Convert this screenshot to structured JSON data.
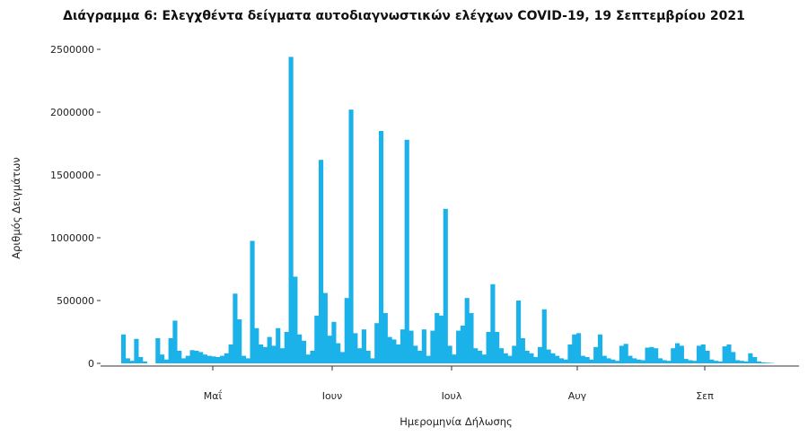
{
  "chart_data": {
    "type": "bar",
    "title": "Διάγραμμα 6: Ελεγχθέντα δείγματα αυτοδιαγνωστικών ελέγχων COVID-19, 19 Σεπτεμβρίου 2021",
    "xlabel": "Ημερομηνία Δήλωσης",
    "ylabel": "Αριθμός Δειγμάτων",
    "ylim": [
      0,
      2500000
    ],
    "y_ticks": [
      "0",
      "500000",
      "1000000",
      "1500000",
      "2000000",
      "2500000"
    ],
    "x_ticks": [
      "Μαΐ",
      "Ιουν",
      "Ιουλ",
      "Αυγ",
      "Σεπ"
    ],
    "grid": false,
    "bar_color": "#1ab2e8",
    "values": [
      230000,
      40000,
      20000,
      195000,
      50000,
      15000,
      0,
      0,
      200000,
      70000,
      30000,
      200000,
      340000,
      100000,
      40000,
      60000,
      105000,
      100000,
      90000,
      70000,
      60000,
      55000,
      50000,
      60000,
      80000,
      150000,
      555000,
      350000,
      60000,
      40000,
      975000,
      280000,
      150000,
      130000,
      210000,
      140000,
      280000,
      120000,
      250000,
      2440000,
      690000,
      230000,
      180000,
      70000,
      100000,
      380000,
      1620000,
      560000,
      220000,
      330000,
      160000,
      90000,
      520000,
      2020000,
      240000,
      120000,
      270000,
      100000,
      40000,
      320000,
      1850000,
      400000,
      210000,
      190000,
      150000,
      270000,
      1780000,
      260000,
      140000,
      100000,
      270000,
      60000,
      260000,
      400000,
      380000,
      1230000,
      140000,
      70000,
      260000,
      300000,
      520000,
      400000,
      120000,
      100000,
      70000,
      250000,
      630000,
      250000,
      120000,
      80000,
      60000,
      140000,
      500000,
      200000,
      100000,
      80000,
      50000,
      130000,
      430000,
      110000,
      80000,
      60000,
      40000,
      30000,
      150000,
      230000,
      240000,
      60000,
      50000,
      30000,
      130000,
      230000,
      60000,
      40000,
      30000,
      20000,
      140000,
      155000,
      60000,
      40000,
      30000,
      25000,
      125000,
      130000,
      120000,
      40000,
      25000,
      20000,
      120000,
      160000,
      140000,
      35000,
      25000,
      20000,
      140000,
      150000,
      100000,
      30000,
      20000,
      15000,
      135000,
      150000,
      90000,
      25000,
      20000,
      15000,
      80000,
      50000,
      15000,
      8000,
      5000,
      3000
    ]
  }
}
